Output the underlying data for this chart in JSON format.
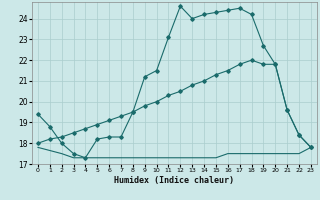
{
  "xlabel": "Humidex (Indice chaleur)",
  "xlim": [
    -0.5,
    23.5
  ],
  "ylim": [
    17,
    24.8
  ],
  "yticks": [
    17,
    18,
    19,
    20,
    21,
    22,
    23,
    24
  ],
  "xticks": [
    0,
    1,
    2,
    3,
    4,
    5,
    6,
    7,
    8,
    9,
    10,
    11,
    12,
    13,
    14,
    15,
    16,
    17,
    18,
    19,
    20,
    21,
    22,
    23
  ],
  "background_color": "#cce8e8",
  "grid_color": "#aacece",
  "line_color": "#1a6b6b",
  "line1_x": [
    0,
    1,
    2,
    3,
    4,
    5,
    6,
    7,
    8,
    9,
    10,
    11,
    12,
    13,
    14,
    15,
    16,
    17,
    18,
    19,
    20,
    21,
    22,
    23
  ],
  "line1_y": [
    19.4,
    18.8,
    18.0,
    17.5,
    17.3,
    18.2,
    18.3,
    18.3,
    19.5,
    21.2,
    21.5,
    23.1,
    24.6,
    24.0,
    24.2,
    24.3,
    24.4,
    24.5,
    24.2,
    22.7,
    21.8,
    19.6,
    18.4,
    17.8
  ],
  "line2_x": [
    0,
    1,
    2,
    3,
    4,
    5,
    6,
    7,
    8,
    9,
    10,
    11,
    12,
    13,
    14,
    15,
    16,
    17,
    18,
    19,
    20,
    21,
    22,
    23
  ],
  "line2_y": [
    18.0,
    18.2,
    18.3,
    18.5,
    18.7,
    18.9,
    19.1,
    19.3,
    19.5,
    19.8,
    20.0,
    20.3,
    20.5,
    20.8,
    21.0,
    21.3,
    21.5,
    21.8,
    22.0,
    21.8,
    21.8,
    19.6,
    18.4,
    17.8
  ],
  "line3_x": [
    0,
    2,
    3,
    4,
    5,
    6,
    7,
    8,
    9,
    10,
    11,
    12,
    13,
    14,
    15,
    16,
    17,
    18,
    19,
    20,
    21,
    22,
    23
  ],
  "line3_y": [
    17.8,
    17.5,
    17.3,
    17.3,
    17.3,
    17.3,
    17.3,
    17.3,
    17.3,
    17.3,
    17.3,
    17.3,
    17.3,
    17.3,
    17.3,
    17.5,
    17.5,
    17.5,
    17.5,
    17.5,
    17.5,
    17.5,
    17.8
  ]
}
